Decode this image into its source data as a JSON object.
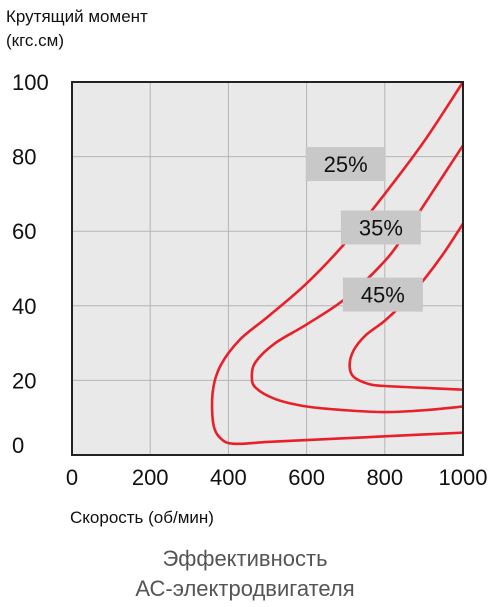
{
  "chart_data": {
    "type": "line",
    "ylabel_line1": "Крутящий момент",
    "ylabel_line2": "(кгс.см)",
    "xlabel": "Скорость (об/мин)",
    "caption_line1": "Эффективность",
    "caption_line2": "АС-электродвигателя",
    "xlim": [
      0,
      1000
    ],
    "ylim": [
      0,
      100
    ],
    "grid": true,
    "x_ticks": [
      0,
      200,
      400,
      600,
      800,
      1000
    ],
    "y_ticks": [
      0,
      20,
      40,
      60,
      80,
      100
    ],
    "line_color": "#e8202a",
    "label_box_color": "#c8c8c8",
    "series": [
      {
        "label": "25%",
        "label_at": [
          700,
          78
        ],
        "points": [
          [
            1000,
            100
          ],
          [
            900,
            84
          ],
          [
            800,
            70
          ],
          [
            700,
            57
          ],
          [
            600,
            46
          ],
          [
            500,
            37
          ],
          [
            430,
            31
          ],
          [
            380,
            24
          ],
          [
            360,
            17
          ],
          [
            362,
            8
          ],
          [
            385,
            4
          ],
          [
            420,
            3
          ],
          [
            500,
            3.5
          ],
          [
            600,
            4
          ],
          [
            700,
            4.5
          ],
          [
            800,
            5
          ],
          [
            900,
            5.5
          ],
          [
            1000,
            6
          ]
        ]
      },
      {
        "label": "35%",
        "label_at": [
          790,
          61
        ],
        "points": [
          [
            1000,
            83
          ],
          [
            950,
            75
          ],
          [
            900,
            67
          ],
          [
            850,
            59
          ],
          [
            800,
            52
          ],
          [
            700,
            42
          ],
          [
            600,
            35
          ],
          [
            520,
            30
          ],
          [
            470,
            25
          ],
          [
            460,
            21
          ],
          [
            470,
            18
          ],
          [
            520,
            15
          ],
          [
            600,
            13
          ],
          [
            700,
            12
          ],
          [
            800,
            11.5
          ],
          [
            900,
            12
          ],
          [
            1000,
            13
          ]
        ]
      },
      {
        "label": "45%",
        "label_at": [
          795,
          43
        ],
        "points": [
          [
            1000,
            62
          ],
          [
            950,
            54
          ],
          [
            900,
            47
          ],
          [
            850,
            41
          ],
          [
            800,
            36
          ],
          [
            750,
            32
          ],
          [
            720,
            28
          ],
          [
            710,
            24
          ],
          [
            720,
            21
          ],
          [
            760,
            19
          ],
          [
            800,
            18.5
          ],
          [
            900,
            18
          ],
          [
            1000,
            17.5
          ]
        ]
      }
    ]
  }
}
